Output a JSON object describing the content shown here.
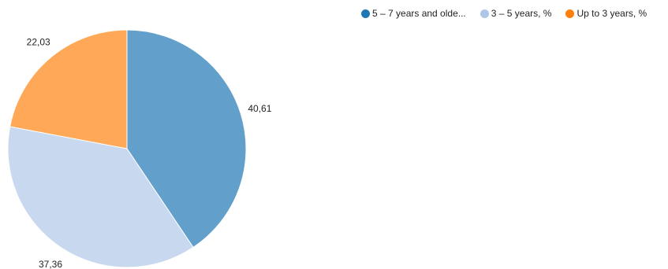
{
  "chart_data": {
    "type": "pie",
    "title": "",
    "slices": [
      {
        "label": "5 – 7 years and olde...",
        "value": 40.61,
        "value_label": "40,61",
        "color": "#62a0cb",
        "legend_color": "#1f77b4"
      },
      {
        "label": "3 – 5 years, %",
        "value": 37.36,
        "value_label": "37,36",
        "color": "#c7d8ef",
        "legend_color": "#aec7e8"
      },
      {
        "label": "Up to 3 years, %",
        "value": 22.03,
        "value_label": "22,03",
        "color": "#ffa857",
        "legend_color": "#ff7f0e"
      }
    ],
    "legend_position": "top-right"
  }
}
